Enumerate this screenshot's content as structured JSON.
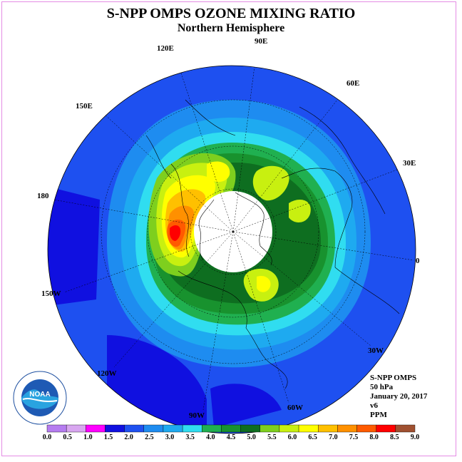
{
  "title": "S-NPP OMPS OZONE MIXING RATIO",
  "subtitle": "Northern Hemisphere",
  "longitude_labels": [
    {
      "text": "90E",
      "pos": "top"
    },
    {
      "text": "60E",
      "pos": "upper-right"
    },
    {
      "text": "30E",
      "pos": "right-upper"
    },
    {
      "text": "0",
      "pos": "right"
    },
    {
      "text": "30W",
      "pos": "lower-right"
    },
    {
      "text": "60W",
      "pos": "bottom-right"
    },
    {
      "text": "90W",
      "pos": "bottom"
    },
    {
      "text": "120W",
      "pos": "bottom-left"
    },
    {
      "text": "150W",
      "pos": "left-lower"
    },
    {
      "text": "180",
      "pos": "left"
    },
    {
      "text": "150E",
      "pos": "upper-left"
    },
    {
      "text": "120E",
      "pos": "top-left"
    }
  ],
  "info": {
    "instrument": "S-NPP OMPS",
    "level": "50 hPa",
    "date": "January 20, 2017",
    "version": "v6",
    "units": "PPM"
  },
  "colorbar": {
    "ticks": [
      "0.0",
      "0.5",
      "1.0",
      "1.5",
      "2.0",
      "2.5",
      "3.0",
      "3.5",
      "4.0",
      "4.5",
      "5.0",
      "5.5",
      "6.0",
      "6.5",
      "7.0",
      "7.5",
      "8.0",
      "8.5",
      "9.0"
    ],
    "colors": [
      "#b57cf0",
      "#d8a6f0",
      "#ff00ff",
      "#1010e0",
      "#1e50f0",
      "#1e8cf0",
      "#1eaaf0",
      "#30ddf0",
      "#20b050",
      "#18922e",
      "#0e6e20",
      "#7ecf1e",
      "#c8f010",
      "#ffff00",
      "#ffc000",
      "#ff9000",
      "#ff5a00",
      "#ff0000",
      "#a05030"
    ]
  },
  "logo": {
    "text": "NOAA",
    "ring_text": "NATIONAL OCEANIC AND ATMOSPHERIC ADMINISTRATION · U.S. DEPARTMENT OF COMMERCE"
  }
}
